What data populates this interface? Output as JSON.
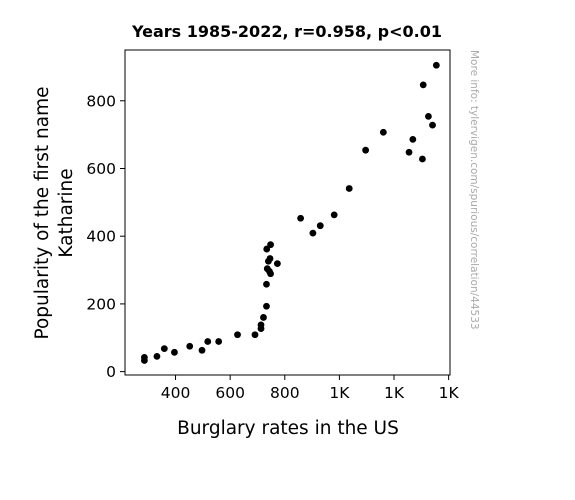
{
  "chart_data": {
    "type": "scatter",
    "title": "Years 1985-2022, r=0.958, p<0.01",
    "xlabel": "Burglary rates in the US",
    "ylabel_lines": [
      "Popularity of the first name",
      "Katharine"
    ],
    "xticks": [
      {
        "value": 400,
        "label": "400"
      },
      {
        "value": 600,
        "label": "600"
      },
      {
        "value": 800,
        "label": "800"
      },
      {
        "value": 1000,
        "label": "1K"
      },
      {
        "value": 1200,
        "label": "1K"
      },
      {
        "value": 1400,
        "label": "1K"
      }
    ],
    "yticks": [
      {
        "value": 0,
        "label": "0"
      },
      {
        "value": 200,
        "label": "200"
      },
      {
        "value": 400,
        "label": "400"
      },
      {
        "value": 600,
        "label": "600"
      },
      {
        "value": 800,
        "label": "800"
      }
    ],
    "xlim": [
      215,
      1405
    ],
    "ylim": [
      -10,
      950
    ],
    "grid": false,
    "point_color": "#000000",
    "points": [
      {
        "x": 1355,
        "y": 905
      },
      {
        "x": 1307,
        "y": 847
      },
      {
        "x": 1326,
        "y": 754
      },
      {
        "x": 1341,
        "y": 728
      },
      {
        "x": 1161,
        "y": 707
      },
      {
        "x": 1269,
        "y": 686
      },
      {
        "x": 1255,
        "y": 648
      },
      {
        "x": 1304,
        "y": 628
      },
      {
        "x": 1096,
        "y": 654
      },
      {
        "x": 1036,
        "y": 541
      },
      {
        "x": 981,
        "y": 463
      },
      {
        "x": 930,
        "y": 431
      },
      {
        "x": 903,
        "y": 409
      },
      {
        "x": 858,
        "y": 453
      },
      {
        "x": 773,
        "y": 319
      },
      {
        "x": 748,
        "y": 375
      },
      {
        "x": 746,
        "y": 334
      },
      {
        "x": 734,
        "y": 362
      },
      {
        "x": 740,
        "y": 326
      },
      {
        "x": 736,
        "y": 304
      },
      {
        "x": 744,
        "y": 296
      },
      {
        "x": 748,
        "y": 289
      },
      {
        "x": 733,
        "y": 258
      },
      {
        "x": 733,
        "y": 193
      },
      {
        "x": 722,
        "y": 160
      },
      {
        "x": 713,
        "y": 138
      },
      {
        "x": 713,
        "y": 127
      },
      {
        "x": 691,
        "y": 109
      },
      {
        "x": 627,
        "y": 109
      },
      {
        "x": 558,
        "y": 89
      },
      {
        "x": 518,
        "y": 89
      },
      {
        "x": 497,
        "y": 63
      },
      {
        "x": 452,
        "y": 75
      },
      {
        "x": 396,
        "y": 57
      },
      {
        "x": 359,
        "y": 68
      },
      {
        "x": 332,
        "y": 45
      },
      {
        "x": 286,
        "y": 42
      },
      {
        "x": 286,
        "y": 33
      }
    ]
  },
  "watermark": "More info: tylervigen.com/spurious/correlation/44533"
}
